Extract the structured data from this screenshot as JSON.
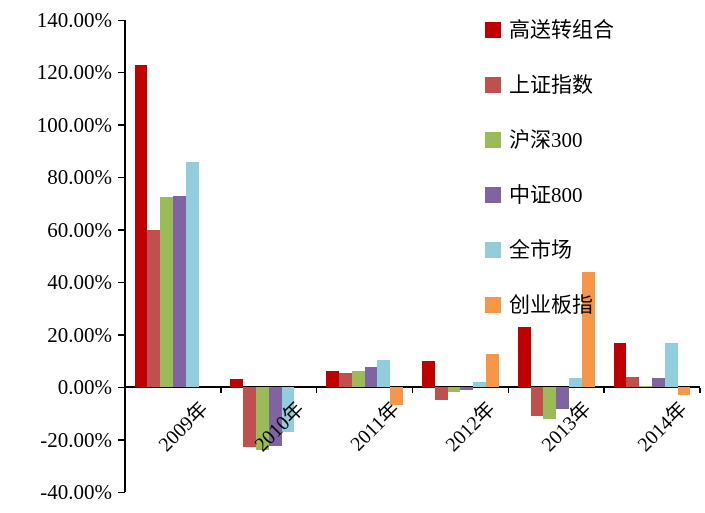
{
  "chart_data": {
    "type": "bar",
    "title": "",
    "categories": [
      "2009年",
      "2010年",
      "2011年",
      "2012年",
      "2013年",
      "2014年"
    ],
    "series": [
      {
        "name": "高送转组合",
        "color": "#C00000",
        "values": [
          123,
          3,
          6,
          10,
          23,
          17
        ]
      },
      {
        "name": "上证指数",
        "color": "#C0504D",
        "values": [
          60,
          -23,
          5.5,
          -5,
          -11,
          4
        ]
      },
      {
        "name": "沪深300",
        "color": "#9BBB59",
        "values": [
          72.5,
          -24,
          6,
          -2,
          -12,
          0.5
        ]
      },
      {
        "name": "中证800",
        "color": "#8064A2",
        "values": [
          73,
          -22.5,
          7.5,
          -1,
          -8.5,
          3.5
        ]
      },
      {
        "name": "全市场",
        "color": "#92CDDC",
        "values": [
          86,
          -17,
          10.5,
          2,
          3.5,
          17
        ]
      },
      {
        "name": "创业板指",
        "color": "#F79646",
        "values": [
          null,
          null,
          -7,
          12.5,
          44,
          -3
        ]
      }
    ],
    "y_axis": {
      "min": -40,
      "max": 140,
      "tick_step": 20,
      "tick_labels": [
        "140.00%",
        "120.00%",
        "100.00%",
        "80.00%",
        "60.00%",
        "40.00%",
        "20.00%",
        "0.00%",
        "-20.00%",
        "-40.00%"
      ]
    },
    "xlabel": "",
    "ylabel": "",
    "grid": false,
    "legend_position": "top-right",
    "axis_color": "#000000",
    "background_color": "#ffffff"
  }
}
